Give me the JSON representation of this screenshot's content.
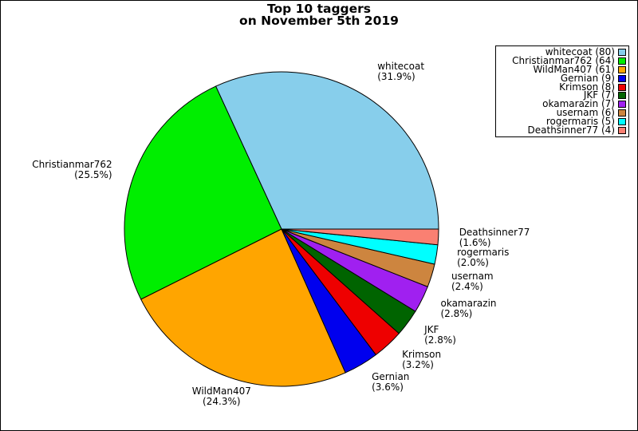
{
  "chart_data": {
    "type": "pie",
    "title": "Top 10 taggers\non November 5th 2019",
    "title_line1": "Top 10 taggers",
    "title_line2": "on November 5th 2019",
    "start_angle_deg": 0,
    "direction": "counterclockwise",
    "legend_position": "upper right",
    "slices": [
      {
        "name": "whitecoat",
        "count": 80,
        "percent": 31.9,
        "percent_label": "(31.9%)",
        "legend_label": "whitecoat (80)",
        "color": "#87CEEB"
      },
      {
        "name": "Christianmar762",
        "count": 64,
        "percent": 25.5,
        "percent_label": "(25.5%)",
        "legend_label": "Christianmar762 (64)",
        "color": "#00EE00"
      },
      {
        "name": "WildMan407",
        "count": 61,
        "percent": 24.3,
        "percent_label": "(24.3%)",
        "legend_label": "WildMan407 (61)",
        "color": "#FFA500"
      },
      {
        "name": "Gernian",
        "count": 9,
        "percent": 3.6,
        "percent_label": "(3.6%)",
        "legend_label": "Gernian (9)",
        "color": "#0000EE"
      },
      {
        "name": "Krimson",
        "count": 8,
        "percent": 3.2,
        "percent_label": "(3.2%)",
        "legend_label": "Krimson (8)",
        "color": "#EE0000"
      },
      {
        "name": "JKF",
        "count": 7,
        "percent": 2.8,
        "percent_label": "(2.8%)",
        "legend_label": "JKF (7)",
        "color": "#006400"
      },
      {
        "name": "okamarazin",
        "count": 7,
        "percent": 2.8,
        "percent_label": "(2.8%)",
        "legend_label": "okamarazin (7)",
        "color": "#A020F0"
      },
      {
        "name": "usernam",
        "count": 6,
        "percent": 2.4,
        "percent_label": "(2.4%)",
        "legend_label": "usernam (6)",
        "color": "#CD853F"
      },
      {
        "name": "rogermaris",
        "count": 5,
        "percent": 2.0,
        "percent_label": "(2.0%)",
        "legend_label": "rogermaris (5)",
        "color": "#00FFFF"
      },
      {
        "name": "Deathsinner77",
        "count": 4,
        "percent": 1.6,
        "percent_label": "(1.6%)",
        "legend_label": "Deathsinner77 (4)",
        "color": "#FA8072"
      }
    ]
  }
}
